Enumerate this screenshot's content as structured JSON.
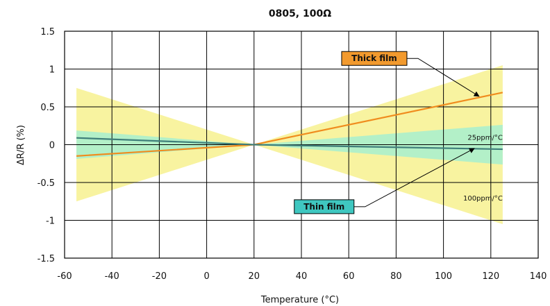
{
  "chart_data": {
    "type": "line",
    "title": "0805, 100Ω",
    "xlabel": "Temperature (°C)",
    "ylabel": "ΔR/R (%)",
    "xlim": [
      -60,
      140
    ],
    "ylim": [
      -1.5,
      1.5
    ],
    "x_ticks": [
      "-60",
      "-40",
      "-20",
      "0",
      "20",
      "40",
      "60",
      "80",
      "100",
      "120",
      "140"
    ],
    "y_ticks": [
      "1.5",
      "1",
      "0.5",
      "0",
      "-0.5",
      "-1",
      "-1.5"
    ],
    "grid": true,
    "series": [
      {
        "name": "Thick film",
        "x": [
          -55,
          20,
          125
        ],
        "y": [
          -0.15,
          0.0,
          0.69
        ],
        "color": "#f08c1e"
      },
      {
        "name": "Thin film",
        "x": [
          -55,
          20,
          125
        ],
        "y": [
          0.09,
          0.0,
          -0.06
        ],
        "color": "#3f7f7a"
      }
    ],
    "bands": [
      {
        "name": "100ppm/°C",
        "ppm": 100,
        "x_range": [
          -55,
          125
        ],
        "x_ref": 20,
        "color": "#f8f3a0"
      },
      {
        "name": "25ppm/°C",
        "ppm": 25,
        "x_range": [
          -55,
          125
        ],
        "x_ref": 20,
        "color": "#b3f0c8"
      }
    ],
    "annotations": [
      {
        "text": "25ppm/°C",
        "x": 125,
        "y": 0.1
      },
      {
        "text": "100ppm/°C",
        "x": 125,
        "y": -0.7
      }
    ],
    "callouts": [
      {
        "text": "Thick film",
        "box_x": 57,
        "box_y": 1.14,
        "arrow_x": 115,
        "arrow_y": 0.64,
        "fill": "#f29a2e"
      },
      {
        "text": "Thin film",
        "box_x": 37,
        "box_y": -0.82,
        "arrow_x": 113,
        "arrow_y": -0.05,
        "fill": "#3fc7c0"
      }
    ]
  }
}
